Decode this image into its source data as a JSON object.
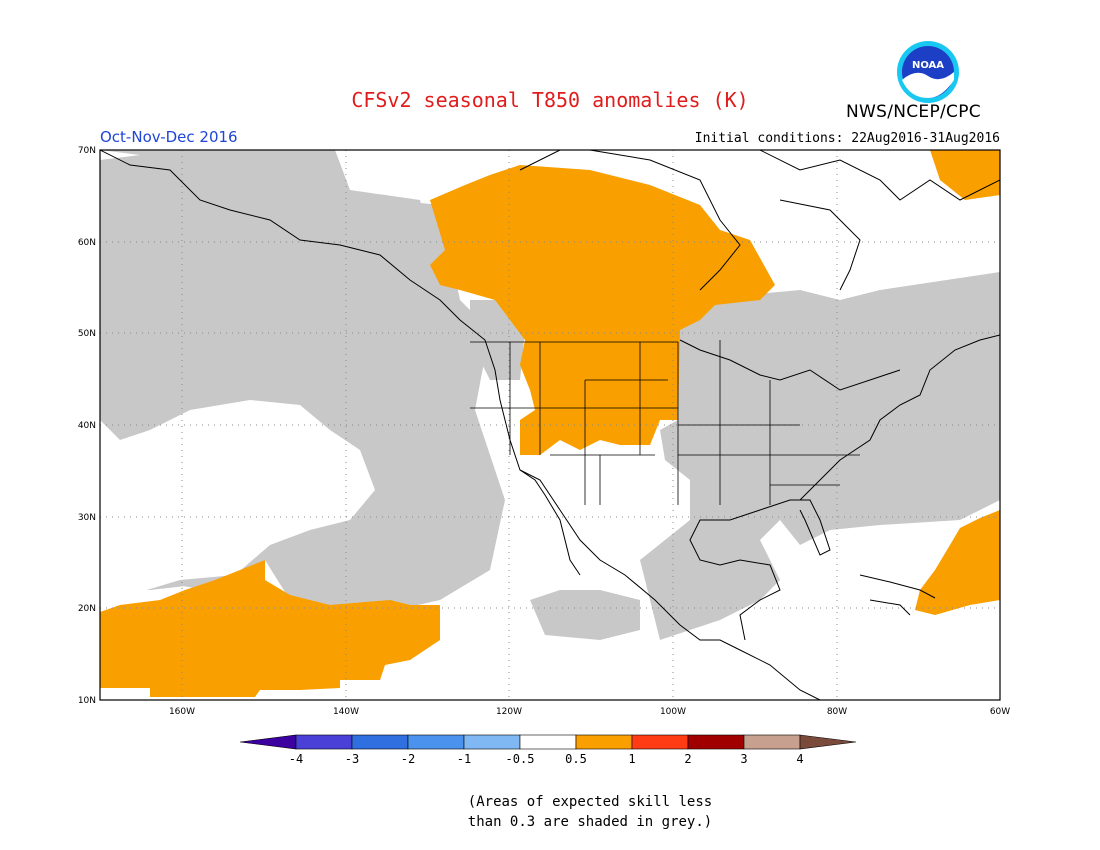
{
  "header": {
    "title": "CFSv2 seasonal T850 anomalies (K)",
    "agency": "NWS/NCEP/CPC",
    "period": "Oct-Nov-Dec 2016",
    "initial_conditions": "Initial conditions: 22Aug2016-31Aug2016",
    "logo_text": "NOAA"
  },
  "map": {
    "lat_labels": [
      "70N",
      "60N",
      "50N",
      "40N",
      "30N",
      "20N",
      "10N"
    ],
    "lon_labels": [
      "160W",
      "140W",
      "120W",
      "100W",
      "80W",
      "60W"
    ],
    "colors": {
      "orange": "#f99f00",
      "grey": "#c8c8c8",
      "land": "#ffffff",
      "coast": "#000000"
    }
  },
  "colorbar": {
    "tick_labels": [
      "-4",
      "-3",
      "-2",
      "-1",
      "-0.5",
      "0.5",
      "1",
      "2",
      "3",
      "4"
    ],
    "colors": [
      "#3d00a0",
      "#4a3fd6",
      "#2f6fe0",
      "#4a92ee",
      "#80b8f4",
      "#ffffff",
      "#f99f00",
      "#ff3c14",
      "#a00000",
      "#c8a090",
      "#7a4a3a"
    ]
  },
  "footnote": {
    "line1": "(Areas of expected skill less",
    "line2": "than 0.3 are shaded in grey.)"
  }
}
